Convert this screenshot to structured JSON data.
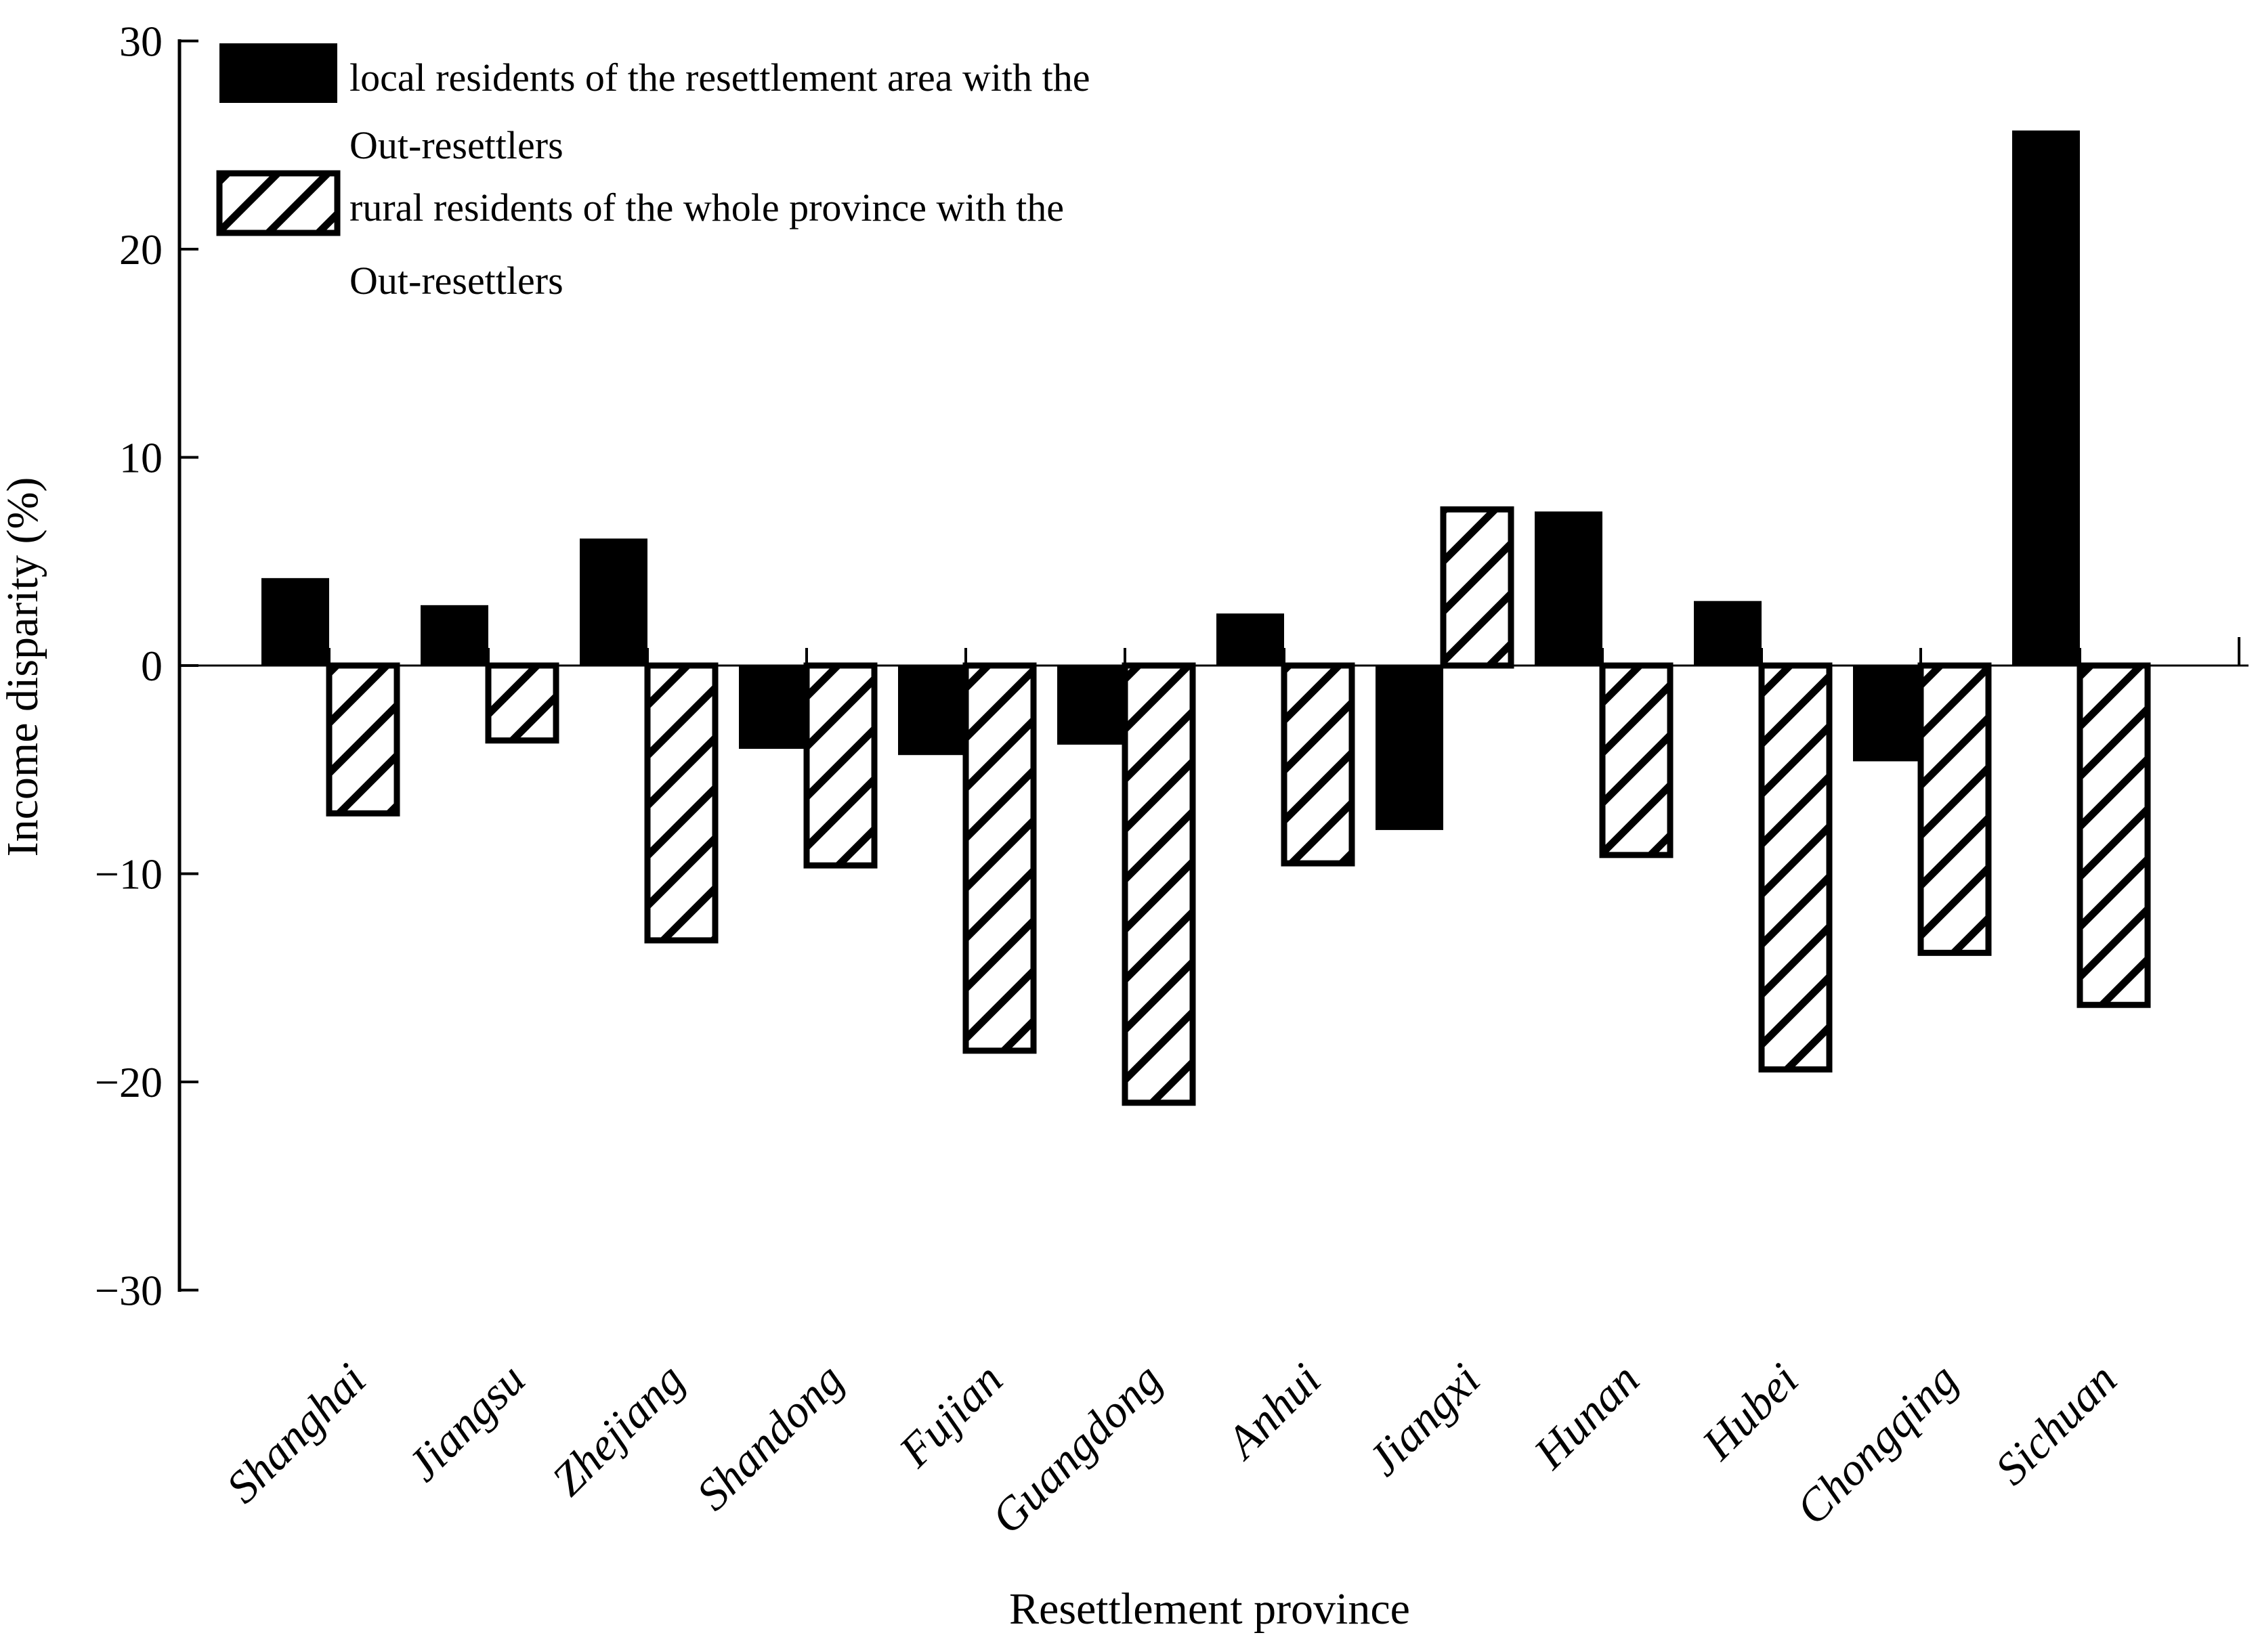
{
  "chart_data": {
    "type": "bar",
    "title": "",
    "xlabel": "Resettlement province",
    "ylabel": "Income disparity (%)",
    "ylim": [
      -30,
      30
    ],
    "yticks": [
      30,
      20,
      10,
      0,
      -10,
      -20,
      -30
    ],
    "ytick_labels": [
      "30",
      "20",
      "10",
      "0",
      "−10",
      "−20",
      "−30"
    ],
    "grid": false,
    "legend_position": "upper-left",
    "background_color": "#ffffff",
    "bar_color": "#000000",
    "categories": [
      "Shanghai",
      "Jiangsu",
      "Zhejiang",
      "Shandong",
      "Fujian",
      "Guangdong",
      "Anhui",
      "Jiangxi",
      "Hunan",
      "Hubei",
      "Chongqing",
      "Sichuan"
    ],
    "series": [
      {
        "name": "local residents of the resettlement area with the Out-resettlers",
        "style": "solid-black",
        "values": [
          4.2,
          2.9,
          6.1,
          -4.0,
          -4.3,
          -3.8,
          2.5,
          -7.9,
          7.4,
          3.1,
          -4.6,
          25.7
        ]
      },
      {
        "name": "rural residents of the whole province with the Out-resettlers",
        "style": "diagonal-hatch",
        "values": [
          -7.1,
          -3.6,
          -13.2,
          -9.6,
          -18.5,
          -21.0,
          -9.5,
          7.5,
          -9.1,
          -19.4,
          -13.8,
          -16.3
        ]
      }
    ],
    "legend": {
      "entries": [
        {
          "swatch": "solid-black",
          "label_line1": "local residents of the resettlement area with the",
          "label_line2": "Out-resettlers"
        },
        {
          "swatch": "diagonal-hatch",
          "label_line1": "rural residents of the whole province with the",
          "label_line2": "Out-resettlers"
        }
      ]
    }
  }
}
